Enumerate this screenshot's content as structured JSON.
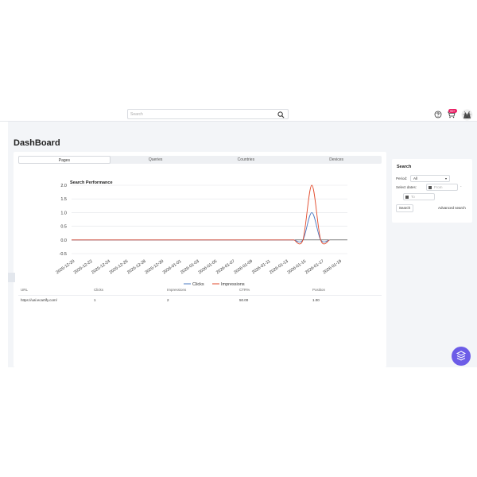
{
  "header": {
    "search_placeholder": "Search",
    "notification_count": "99+"
  },
  "page": {
    "title": "DashBoard"
  },
  "tabs": [
    "Pages",
    "Queries",
    "Countries",
    "Devices"
  ],
  "chart_data": {
    "type": "line",
    "title": "Search Performance",
    "categories": [
      "2025-12-20",
      "2025-12-22",
      "2025-12-24",
      "2025-12-26",
      "2025-12-28",
      "2025-12-30",
      "2026-01-01",
      "2026-01-03",
      "2026-01-05",
      "2026-01-07",
      "2026-01-09",
      "2026-01-11",
      "2026-01-13",
      "2026-01-15",
      "2026-01-17",
      "2026-01-19"
    ],
    "series": [
      {
        "name": "Clicks",
        "color": "#4a78c2",
        "x": [
          "2026-01-14",
          "2026-01-15",
          "2026-01-16",
          "2026-01-17",
          "2026-01-18"
        ],
        "values": [
          0,
          0,
          1,
          0,
          0
        ]
      },
      {
        "name": "Impressions",
        "color": "#e24a2b",
        "x": [
          "2026-01-14",
          "2026-01-15",
          "2026-01-16",
          "2026-01-17",
          "2026-01-18"
        ],
        "values": [
          0,
          0,
          2,
          0,
          0
        ]
      }
    ],
    "yticks": [
      "2.0",
      "1.5",
      "1.0",
      "0.5",
      "0.0",
      "-0.5"
    ],
    "ylim": [
      -0.5,
      2.0
    ],
    "legend": "bottom-center",
    "grid": true
  },
  "table": {
    "columns": [
      "URL",
      "Clicks",
      "Impressions",
      "CTR%",
      "Position"
    ],
    "rows": [
      [
        "https://ual.ecartify.com/",
        "1",
        "2",
        "50.00",
        "1.00"
      ]
    ]
  },
  "search_panel": {
    "title": "Search",
    "period_label": "Period:",
    "period_value": "All",
    "dates_label": "Select dates:",
    "from_placeholder": "From",
    "separator": "-",
    "to_placeholder": "To",
    "search_button": "Search",
    "advanced_link": "Advanced search"
  }
}
